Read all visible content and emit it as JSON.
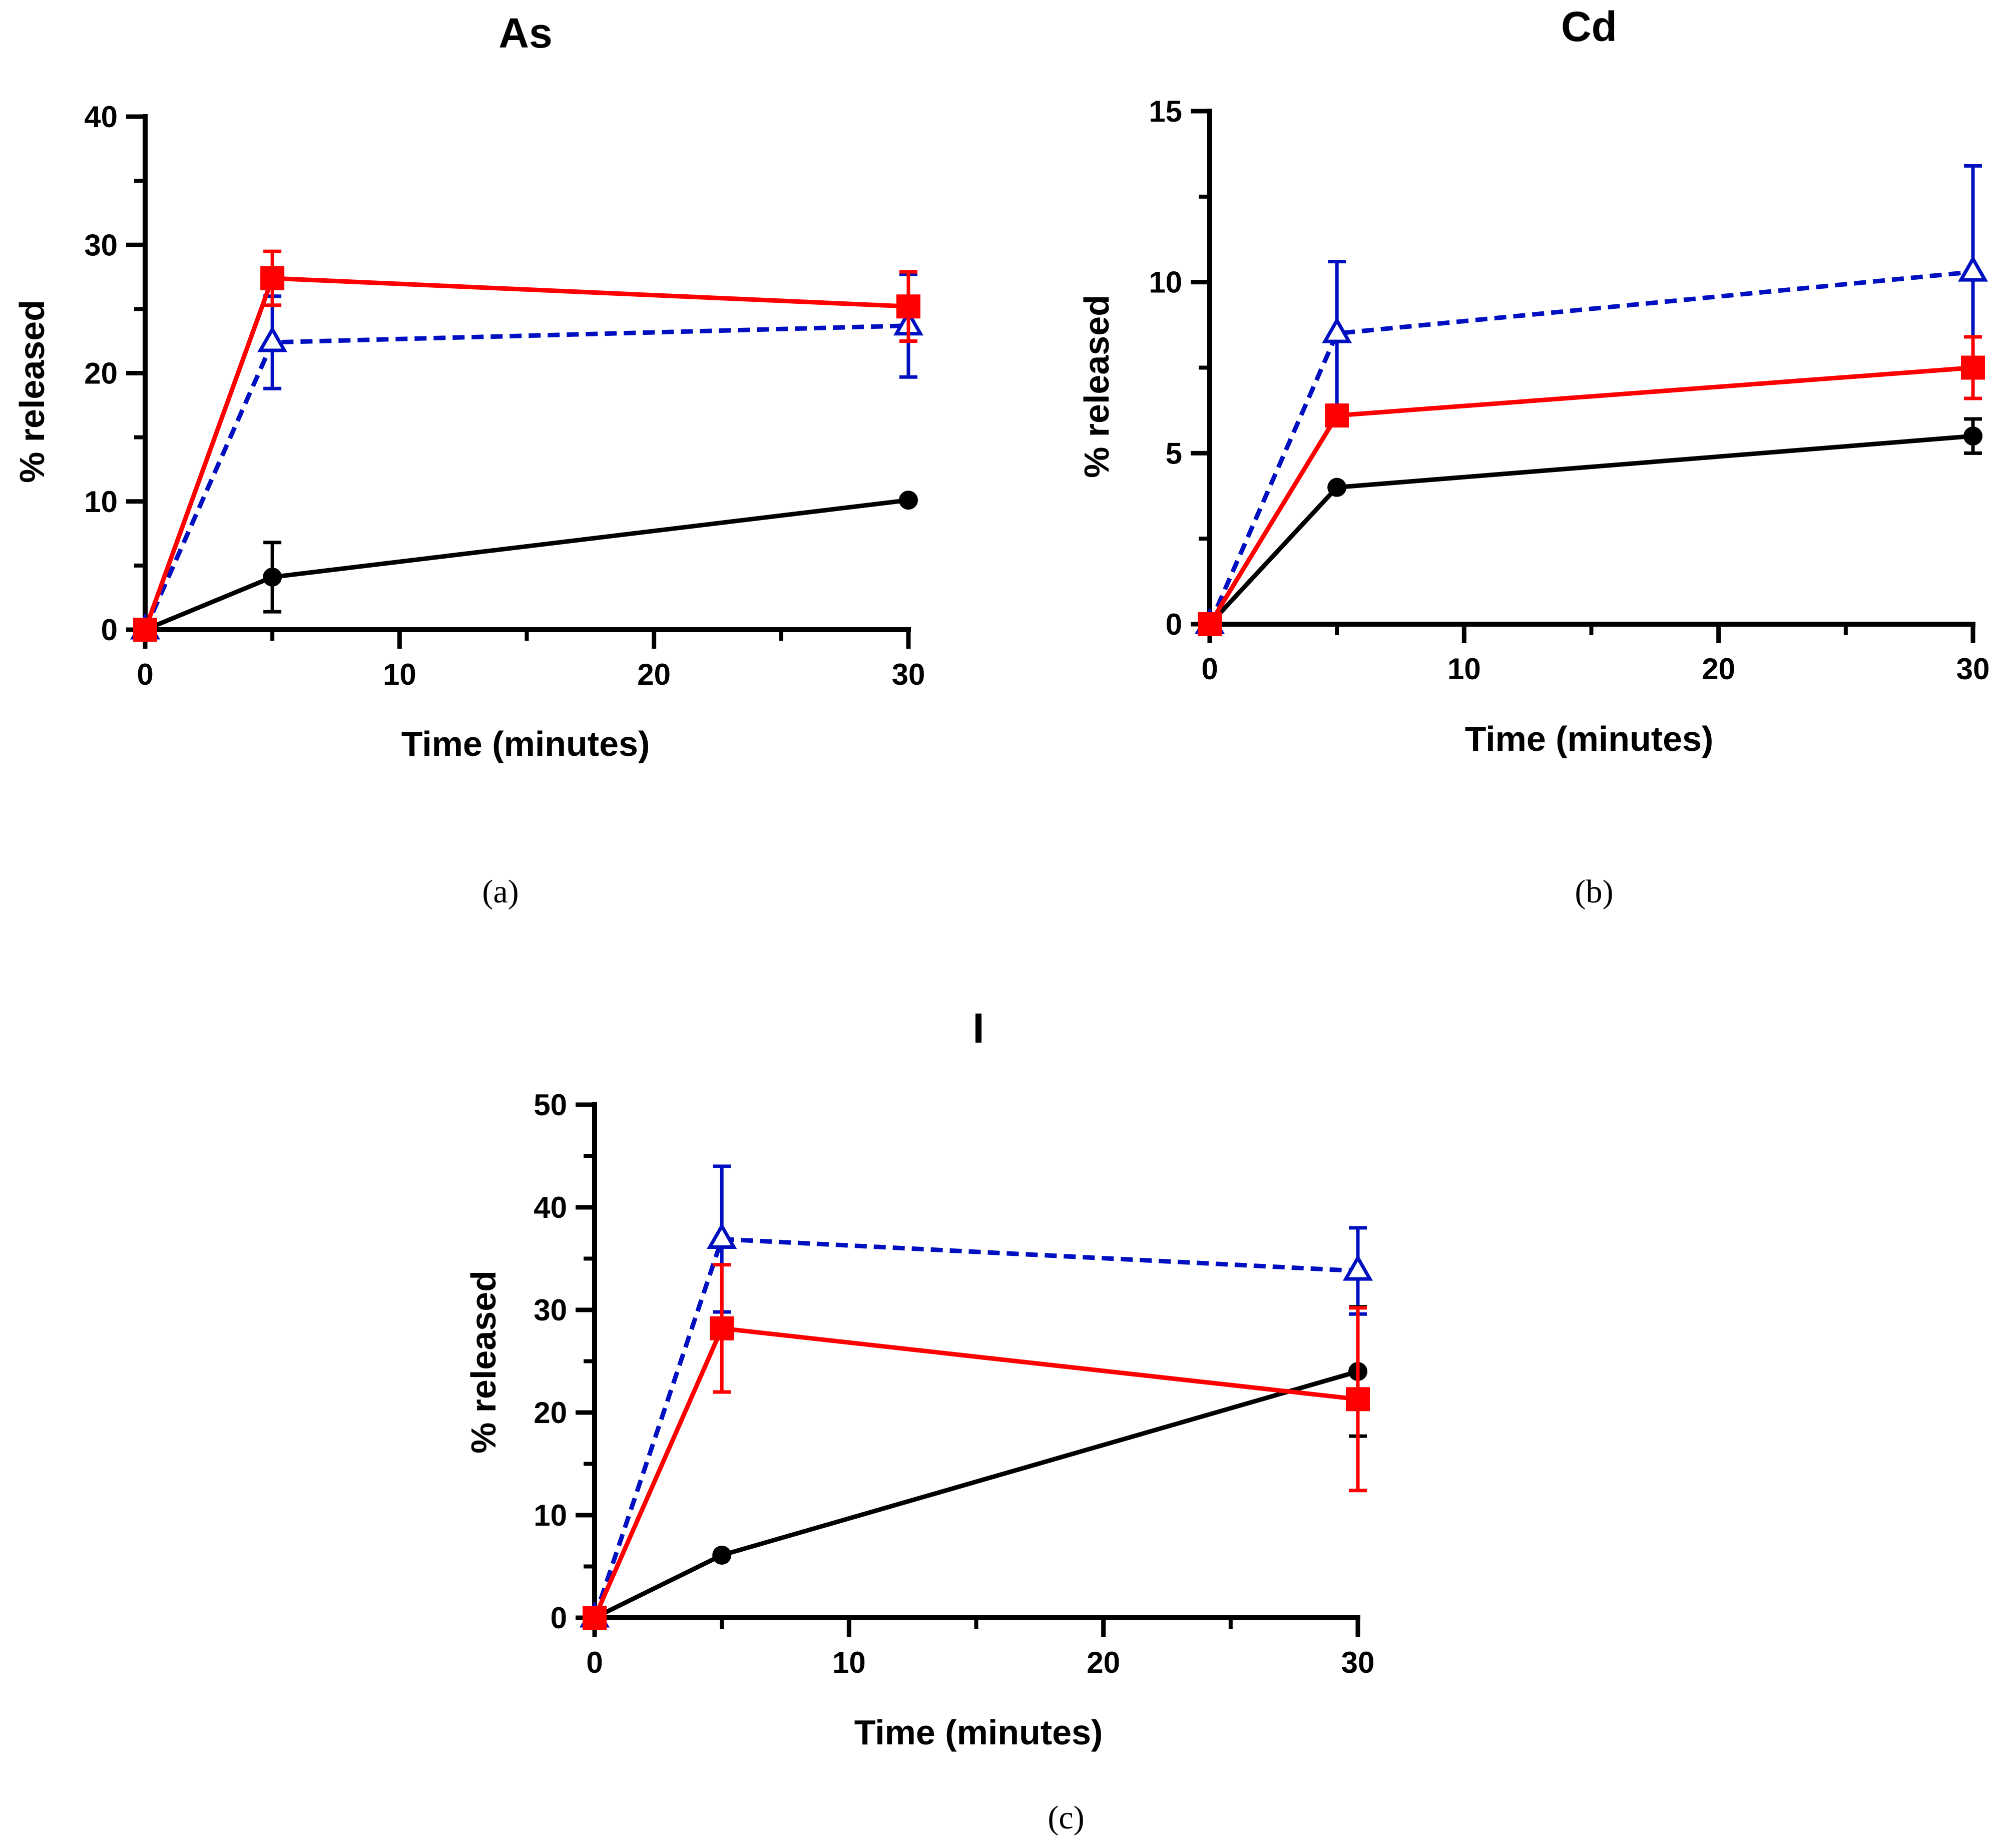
{
  "figure": {
    "captions": [
      "(a)",
      "(b)",
      "(c)"
    ]
  },
  "series_styles": [
    {
      "name": "black",
      "color": "#000000",
      "marker": "filled-circle",
      "line": "solid"
    },
    {
      "name": "red",
      "color": "#ff0000",
      "marker": "filled-square",
      "line": "solid"
    },
    {
      "name": "blue",
      "color": "#0010c0",
      "marker": "open-triangle",
      "line": "dashed"
    }
  ],
  "chart_data": [
    {
      "type": "line",
      "caption": "(a)",
      "title": "As",
      "xlabel": "Time (minutes)",
      "ylabel": "% released",
      "xlim": [
        0,
        30
      ],
      "ylim": [
        0,
        40
      ],
      "xticks": [
        0,
        10,
        20,
        30
      ],
      "yticks": [
        0,
        10,
        20,
        30,
        40
      ],
      "x": [
        0,
        5,
        30
      ],
      "series": [
        {
          "name": "black",
          "values": [
            0,
            4.1,
            10.1
          ],
          "errors": [
            0,
            2.7,
            0
          ]
        },
        {
          "name": "red",
          "values": [
            0,
            27.4,
            25.2
          ],
          "errors": [
            0,
            2.1,
            2.7
          ]
        },
        {
          "name": "blue",
          "values": [
            0,
            22.4,
            23.7
          ],
          "errors": [
            0,
            3.6,
            4.0
          ]
        }
      ]
    },
    {
      "type": "line",
      "caption": "(b)",
      "title": "Cd",
      "xlabel": "Time (minutes)",
      "ylabel": "% released",
      "xlim": [
        0,
        30
      ],
      "ylim": [
        0,
        15
      ],
      "xticks": [
        0,
        10,
        20,
        30
      ],
      "yticks": [
        0,
        5,
        10,
        15
      ],
      "x": [
        0,
        5,
        30
      ],
      "series": [
        {
          "name": "black",
          "values": [
            0,
            4.0,
            5.5
          ],
          "errors": [
            0,
            0,
            0.5
          ]
        },
        {
          "name": "red",
          "values": [
            0,
            6.1,
            7.5
          ],
          "errors": [
            0,
            0,
            0.9
          ]
        },
        {
          "name": "blue",
          "values": [
            0,
            8.5,
            10.3
          ],
          "errors": [
            0,
            2.1,
            3.1
          ]
        }
      ]
    },
    {
      "type": "line",
      "caption": "(c)",
      "title": "I",
      "xlabel": "Time (minutes)",
      "ylabel": "% released",
      "xlim": [
        0,
        30
      ],
      "ylim": [
        0,
        50
      ],
      "xticks": [
        0,
        10,
        20,
        30
      ],
      "yticks": [
        0,
        10,
        20,
        30,
        40,
        50
      ],
      "x": [
        0,
        5,
        30
      ],
      "series": [
        {
          "name": "black",
          "values": [
            0,
            6.1,
            24.0
          ],
          "errors": [
            0,
            0,
            6.3
          ]
        },
        {
          "name": "red",
          "values": [
            0,
            28.2,
            21.3
          ],
          "errors": [
            0,
            6.2,
            8.9
          ]
        },
        {
          "name": "blue",
          "values": [
            0,
            36.9,
            33.8
          ],
          "errors": [
            0,
            7.1,
            4.2
          ]
        }
      ]
    }
  ]
}
